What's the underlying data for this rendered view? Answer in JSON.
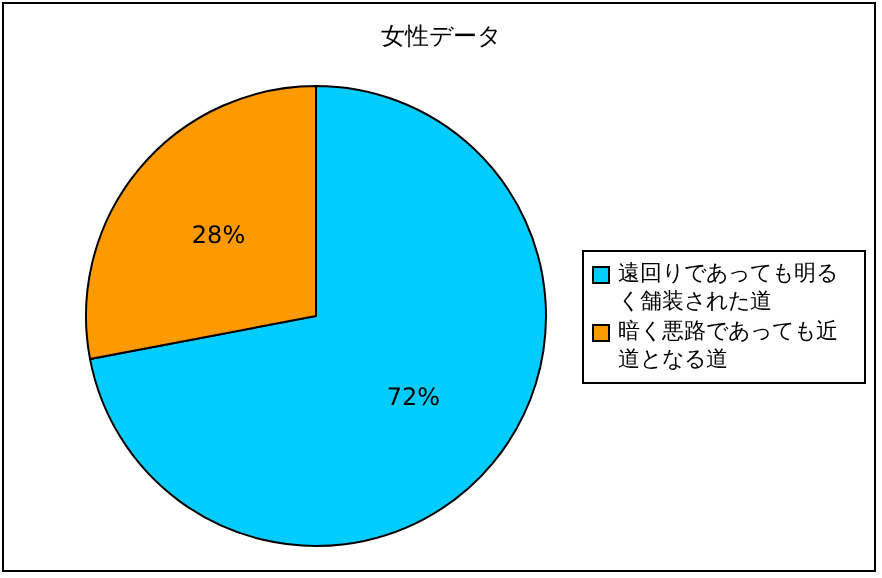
{
  "chart_data": {
    "type": "pie",
    "title": "女性データ",
    "categories": [
      "遠回りであっても明るく舗装された道",
      "暗く悪路であっても近道となる道"
    ],
    "values": [
      72,
      28
    ],
    "colors": [
      "#00ccff",
      "#ff9900"
    ],
    "value_labels": [
      "72%",
      "28%"
    ],
    "legend": "right"
  }
}
